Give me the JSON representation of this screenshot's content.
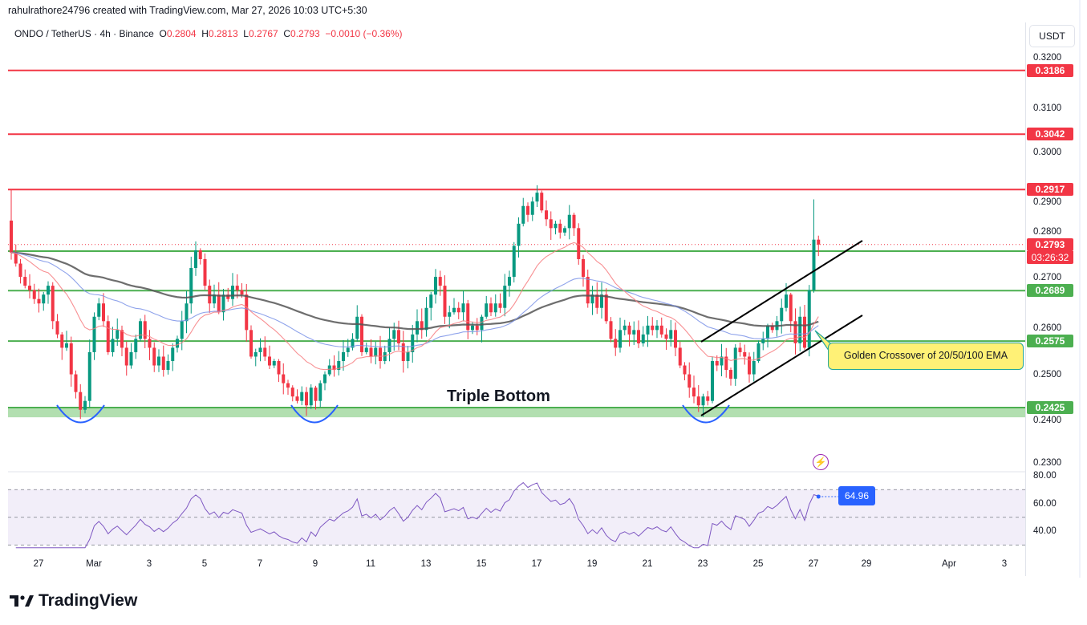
{
  "credit": "rahulrathore24796 created with TradingView.com, Mar 27, 2026 10:03 UTC+5:30",
  "legend": {
    "symbol": "ONDO / TetherUS · 4h · Binance",
    "o_label": "O",
    "o": "0.2804",
    "h_label": "H",
    "h": "0.2813",
    "l_label": "L",
    "l": "0.2767",
    "c_label": "C",
    "c": "0.2793",
    "change": "−0.0010 (−0.36%)"
  },
  "currency_button": "USDT",
  "logo_text": "TradingView",
  "chart_data": {
    "type": "candlestick",
    "symbol": "ONDO/USDT",
    "interval": "4h",
    "first_candle": "Feb 26 00:00",
    "closes": [
      0.2775,
      0.275,
      0.272,
      0.27,
      0.269,
      0.267,
      0.266,
      0.268,
      0.27,
      0.262,
      0.259,
      0.256,
      0.257,
      0.25,
      0.246,
      0.242,
      0.244,
      0.255,
      0.263,
      0.266,
      0.262,
      0.255,
      0.258,
      0.26,
      0.256,
      0.252,
      0.255,
      0.258,
      0.262,
      0.258,
      0.256,
      0.252,
      0.254,
      0.251,
      0.253,
      0.256,
      0.258,
      0.262,
      0.266,
      0.274,
      0.278,
      0.276,
      0.27,
      0.266,
      0.268,
      0.264,
      0.268,
      0.267,
      0.27,
      0.269,
      0.268,
      0.26,
      0.254,
      0.255,
      0.256,
      0.254,
      0.252,
      0.253,
      0.25,
      0.248,
      0.247,
      0.245,
      0.244,
      0.246,
      0.243,
      0.247,
      0.244,
      0.248,
      0.25,
      0.252,
      0.251,
      0.253,
      0.255,
      0.256,
      0.258,
      0.263,
      0.255,
      0.256,
      0.254,
      0.256,
      0.253,
      0.255,
      0.258,
      0.26,
      0.257,
      0.253,
      0.255,
      0.259,
      0.262,
      0.26,
      0.265,
      0.268,
      0.272,
      0.27,
      0.263,
      0.264,
      0.265,
      0.264,
      0.266,
      0.26,
      0.261,
      0.26,
      0.263,
      0.266,
      0.264,
      0.266,
      0.265,
      0.27,
      0.272,
      0.279,
      0.284,
      0.288,
      0.286,
      0.289,
      0.291,
      0.287,
      0.285,
      0.283,
      0.284,
      0.282,
      0.283,
      0.286,
      0.283,
      0.276,
      0.272,
      0.266,
      0.268,
      0.265,
      0.268,
      0.262,
      0.258,
      0.256,
      0.26,
      0.261,
      0.259,
      0.26,
      0.257,
      0.259,
      0.261,
      0.26,
      0.261,
      0.259,
      0.258,
      0.26,
      0.256,
      0.252,
      0.25,
      0.247,
      0.245,
      0.243,
      0.245,
      0.244,
      0.253,
      0.252,
      0.254,
      0.251,
      0.249,
      0.256,
      0.255,
      0.254,
      0.25,
      0.253,
      0.257,
      0.258,
      0.261,
      0.26,
      0.262,
      0.265,
      0.268,
      0.262,
      0.257,
      0.263,
      0.256,
      0.269,
      0.2804,
      0.2793
    ],
    "first_open": 0.2847,
    "wick_highs": {
      "0": 0.2917,
      "174": 0.2895,
      "175": 0.2813
    },
    "wick_lows": {
      "175": 0.2767
    },
    "indicators": [
      "EMA 20",
      "EMA 50",
      "EMA 100",
      "RSI 14"
    ],
    "colors": {
      "up": "#089981",
      "down": "#f23645",
      "ema20": "#f77c80",
      "ema50": "#7b93e8",
      "ema100": "#555555",
      "rsi": "#7e57c2"
    },
    "ylim": [
      0.228,
      0.323
    ],
    "y_ticks": [
      "0.2300",
      "0.2400",
      "0.2500",
      "0.2600",
      "0.2700",
      "0.2800",
      "0.2900",
      "0.3000",
      "0.3100",
      "0.3200"
    ],
    "x_ticks": [
      "27",
      "Mar",
      "3",
      "5",
      "7",
      "9",
      "11",
      "13",
      "15",
      "17",
      "19",
      "21",
      "23",
      "25",
      "27",
      "29",
      "Apr",
      "3"
    ],
    "resistance_levels": [
      {
        "value": 0.3186,
        "label": "0.3186"
      },
      {
        "value": 0.3042,
        "label": "0.3042"
      },
      {
        "value": 0.2917,
        "label": "0.2917"
      }
    ],
    "support_levels": [
      {
        "value": 0.2778
      },
      {
        "value": 0.2689,
        "label": "0.2689"
      },
      {
        "value": 0.2575,
        "label": "0.2575"
      }
    ],
    "support_zone": {
      "from": 0.2403,
      "to": 0.2425,
      "label": "0.2425"
    },
    "current_price": {
      "value": 0.2793,
      "label": "0.2793",
      "countdown": "03:26:32"
    },
    "annotations": {
      "pattern": "Triple Bottom",
      "callout": "Golden Crossover of 20/50/100 EMA"
    },
    "rsi": {
      "value_label": "64.96",
      "ticks": [
        "80.00",
        "60.00",
        "40.00"
      ],
      "levels": [
        70,
        50,
        30
      ],
      "ylim": [
        27,
        81
      ]
    },
    "grid": false
  }
}
